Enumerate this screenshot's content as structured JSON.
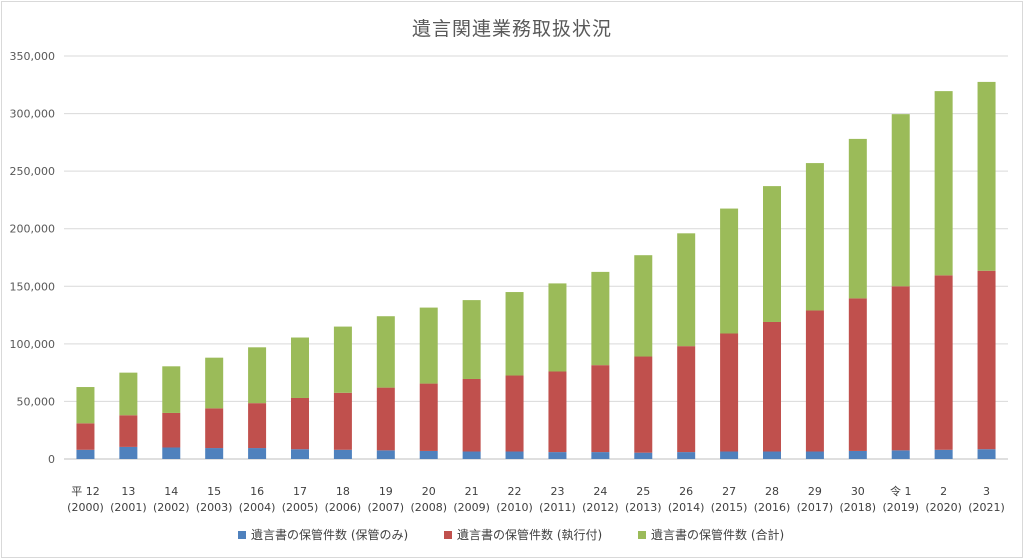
{
  "chart_data": {
    "type": "bar",
    "stacked": true,
    "title": "遺言関連業務取扱状況",
    "categories": [
      [
        "平 12",
        "(2000)"
      ],
      [
        "13",
        "(2001)"
      ],
      [
        "14",
        "(2002)"
      ],
      [
        "15",
        "(2003)"
      ],
      [
        "16",
        "(2004)"
      ],
      [
        "17",
        "(2005)"
      ],
      [
        "18",
        "(2006)"
      ],
      [
        "19",
        "(2007)"
      ],
      [
        "20",
        "(2008)"
      ],
      [
        "21",
        "(2009)"
      ],
      [
        "22",
        "(2010)"
      ],
      [
        "23",
        "(2011)"
      ],
      [
        "24",
        "(2012)"
      ],
      [
        "25",
        "(2013)"
      ],
      [
        "26",
        "(2014)"
      ],
      [
        "27",
        "(2015)"
      ],
      [
        "28",
        "(2016)"
      ],
      [
        "29",
        "(2017)"
      ],
      [
        "30",
        "(2018)"
      ],
      [
        "令 1",
        "(2019)"
      ],
      [
        "2",
        "(2020)"
      ],
      [
        "3",
        "(2021)"
      ]
    ],
    "series": [
      {
        "name": "遺言書の保管件数 (保管のみ)",
        "color": "#4f81bd",
        "values": [
          8000,
          10500,
          10000,
          9500,
          9500,
          8500,
          8000,
          7500,
          7000,
          6500,
          6500,
          6000,
          6000,
          5500,
          6000,
          6500,
          6500,
          6500,
          7000,
          7500,
          8000,
          8500
        ]
      },
      {
        "name": "遺言書の保管件数 (執行付)",
        "color": "#c0504d",
        "values": [
          23000,
          27500,
          30000,
          34500,
          39000,
          44500,
          49500,
          54500,
          58500,
          63000,
          66000,
          70000,
          75500,
          83500,
          92000,
          102500,
          112500,
          122500,
          132500,
          142500,
          151500,
          155000
        ]
      },
      {
        "name": "遺言書の保管件数 (合計)",
        "color": "#9bbb59",
        "values": [
          31500,
          37000,
          40500,
          44000,
          48500,
          52500,
          57500,
          62000,
          66000,
          68500,
          72500,
          76500,
          81000,
          88000,
          98000,
          108500,
          118000,
          128000,
          138500,
          149500,
          160000,
          164000
        ]
      }
    ],
    "ylim": [
      0,
      350000
    ],
    "yticks": [
      "0",
      "50,000",
      "100,000",
      "150,000",
      "200,000",
      "250,000",
      "300,000",
      "350,000"
    ],
    "grid": true,
    "legend_position": "bottom"
  }
}
